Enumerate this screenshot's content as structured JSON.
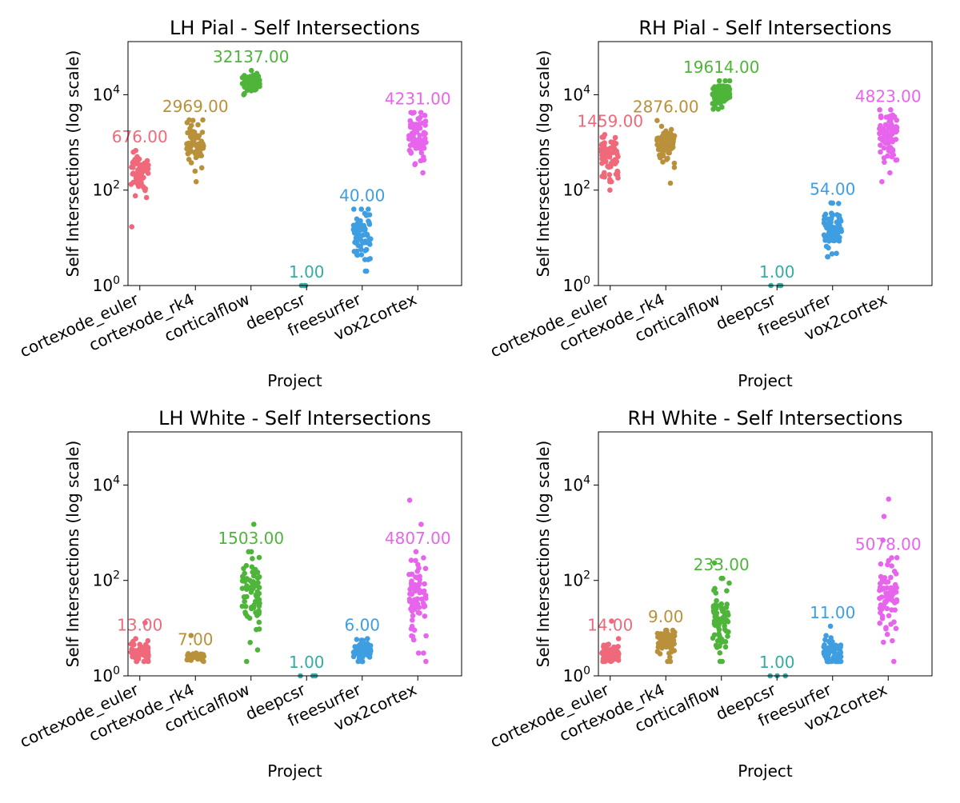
{
  "colors": {
    "cortexode_euler": "#f0697b",
    "cortexode_rk4": "#b8913a",
    "corticalflow": "#4eb53a",
    "deepcsr": "#37aba3",
    "freesurfer": "#3f9ee2",
    "vox2cortex": "#e765ec",
    "axis": "#000000"
  },
  "chart_data": [
    {
      "type": "scatter",
      "title": "LH Pial - Self Intersections",
      "xlabel": "Project",
      "ylabel": "Self Intersections (log scale)",
      "yscale": "log",
      "ylim": [
        1,
        130000
      ],
      "ytick_labels": [
        "10^0",
        "10^2",
        "10^4"
      ],
      "grid": false,
      "categories": [
        "cortexode_euler",
        "cortexode_rk4",
        "corticalflow",
        "deepcsr",
        "freesurfer",
        "vox2cortex"
      ],
      "max_labels": [
        "676.00",
        "2969.00",
        "32137.00",
        "1.00",
        "40.00",
        "4231.00"
      ],
      "series": [
        {
          "category": "cortexode_euler",
          "min": 70,
          "max": 676,
          "center": 250,
          "outliers": [
            17
          ]
        },
        {
          "category": "cortexode_rk4",
          "min": 250,
          "max": 2969,
          "center": 900,
          "outliers": [
            150
          ]
        },
        {
          "category": "corticalflow",
          "min": 10000,
          "max": 32137,
          "center": 18000,
          "outliers": []
        },
        {
          "category": "deepcsr",
          "min": 1,
          "max": 1,
          "center": 1,
          "outliers": []
        },
        {
          "category": "freesurfer",
          "min": 3.5,
          "max": 40,
          "center": 12,
          "outliers": [
            2,
            2
          ]
        },
        {
          "category": "vox2cortex",
          "min": 230,
          "max": 4231,
          "center": 1400,
          "outliers": []
        }
      ]
    },
    {
      "type": "scatter",
      "title": "RH Pial - Self Intersections",
      "xlabel": "Project",
      "ylabel": "Self Intersections (log scale)",
      "yscale": "log",
      "ylim": [
        1,
        130000
      ],
      "ytick_labels": [
        "10^0",
        "10^2",
        "10^4"
      ],
      "grid": false,
      "categories": [
        "cortexode_euler",
        "cortexode_rk4",
        "corticalflow",
        "deepcsr",
        "freesurfer",
        "vox2cortex"
      ],
      "max_labels": [
        "1459.00",
        "2876.00",
        "19614.00",
        "1.00",
        "54.00",
        "4823.00"
      ],
      "series": [
        {
          "category": "cortexode_euler",
          "min": 150,
          "max": 1459,
          "center": 500,
          "outliers": [
            100
          ]
        },
        {
          "category": "cortexode_rk4",
          "min": 300,
          "max": 2876,
          "center": 900,
          "outliers": [
            140
          ]
        },
        {
          "category": "corticalflow",
          "min": 5000,
          "max": 19614,
          "center": 10000,
          "outliers": []
        },
        {
          "category": "deepcsr",
          "min": 1,
          "max": 1,
          "center": 1,
          "outliers": []
        },
        {
          "category": "freesurfer",
          "min": 4,
          "max": 54,
          "center": 15,
          "outliers": []
        },
        {
          "category": "vox2cortex",
          "min": 230,
          "max": 4823,
          "center": 1500,
          "outliers": [
            150
          ]
        }
      ]
    },
    {
      "type": "scatter",
      "title": "LH White - Self Intersections",
      "xlabel": "Project",
      "ylabel": "Self Intersections (log scale)",
      "yscale": "log",
      "ylim": [
        1,
        130000
      ],
      "ytick_labels": [
        "10^0",
        "10^2",
        "10^4"
      ],
      "grid": false,
      "categories": [
        "cortexode_euler",
        "cortexode_rk4",
        "corticalflow",
        "deepcsr",
        "freesurfer",
        "vox2cortex"
      ],
      "max_labels": [
        "13.00",
        "7.00",
        "1503.00",
        "1.00",
        "6.00",
        "4807.00"
      ],
      "series": [
        {
          "category": "cortexode_euler",
          "min": 2,
          "max": 6,
          "center": 3,
          "outliers": [
            13
          ]
        },
        {
          "category": "cortexode_rk4",
          "min": 2,
          "max": 3,
          "center": 2.5,
          "outliers": [
            7
          ]
        },
        {
          "category": "corticalflow",
          "min": 5,
          "max": 400,
          "center": 60,
          "outliers": [
            1503,
            2,
            3.5
          ]
        },
        {
          "category": "deepcsr",
          "min": 1,
          "max": 1,
          "center": 1,
          "outliers": []
        },
        {
          "category": "freesurfer",
          "min": 2,
          "max": 6,
          "center": 3.5,
          "outliers": []
        },
        {
          "category": "vox2cortex",
          "min": 3,
          "max": 400,
          "center": 40,
          "outliers": [
            4807,
            1500,
            2
          ]
        }
      ]
    },
    {
      "type": "scatter",
      "title": "RH White - Self Intersections",
      "xlabel": "Project",
      "ylabel": "Self Intersections (log scale)",
      "yscale": "log",
      "ylim": [
        1,
        130000
      ],
      "ytick_labels": [
        "10^0",
        "10^2",
        "10^4"
      ],
      "grid": false,
      "categories": [
        "cortexode_euler",
        "cortexode_rk4",
        "corticalflow",
        "deepcsr",
        "freesurfer",
        "vox2cortex"
      ],
      "max_labels": [
        "14.00",
        "9.00",
        "233.00",
        "1.00",
        "11.00",
        "5078.00"
      ],
      "series": [
        {
          "category": "cortexode_euler",
          "min": 2,
          "max": 6,
          "center": 3,
          "outliers": [
            14
          ]
        },
        {
          "category": "cortexode_rk4",
          "min": 2,
          "max": 9,
          "center": 5,
          "outliers": []
        },
        {
          "category": "corticalflow",
          "min": 2,
          "max": 110,
          "center": 15,
          "outliers": [
            233
          ]
        },
        {
          "category": "deepcsr",
          "min": 1,
          "max": 1,
          "center": 1,
          "outliers": []
        },
        {
          "category": "freesurfer",
          "min": 2,
          "max": 11,
          "center": 3,
          "outliers": []
        },
        {
          "category": "vox2cortex",
          "min": 2,
          "max": 300,
          "center": 40,
          "outliers": [
            5078,
            2200,
            700
          ]
        }
      ]
    }
  ]
}
